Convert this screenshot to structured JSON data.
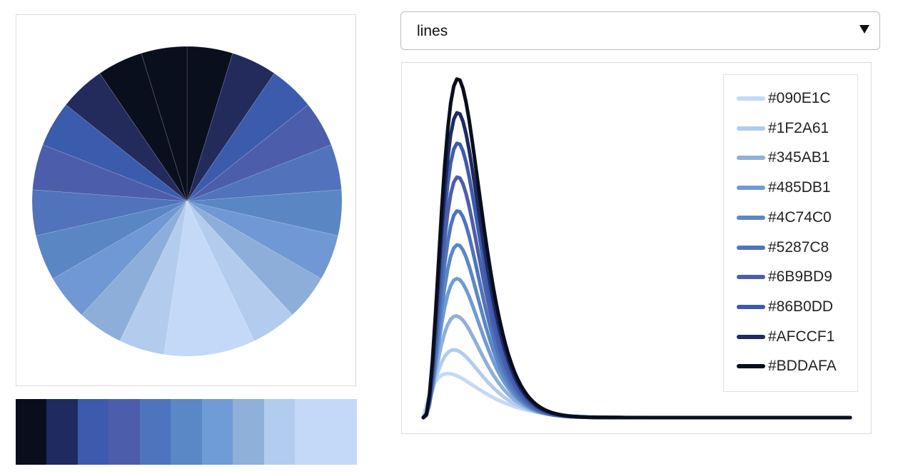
{
  "select": {
    "value": "lines"
  },
  "swatches": [
    "#090E1C",
    "#1F2A61",
    "#3D5BAD",
    "#4C5EAB",
    "#4E74BD",
    "#5A87C5",
    "#6F9BD6",
    "#8EB0D9",
    "#B1CCEE",
    "#C3D9F7"
  ],
  "chart_data": [
    {
      "type": "pie",
      "values": [
        1,
        1,
        1,
        1,
        1,
        1,
        1,
        1,
        1,
        2,
        1,
        1,
        1,
        1,
        1,
        1,
        1,
        1,
        1,
        1
      ],
      "colors": [
        "#0A0F1E",
        "#222B5C",
        "#3B5BAD",
        "#4C5EAB",
        "#5173BB",
        "#5B86C4",
        "#6F98D4",
        "#8CAED8",
        "#B3CCEE",
        "#C3D9F7",
        "#B3CCEE",
        "#8CAED8",
        "#6F98D4",
        "#5B86C4",
        "#5173BB",
        "#4C5EAB",
        "#3B5BAD",
        "#222B5C",
        "#0A0F1E",
        "#0A0F1E"
      ]
    },
    {
      "type": "line",
      "x_range": [
        0,
        10
      ],
      "series": [
        {
          "name": "#090E1C",
          "color": "#C3D9F7",
          "shape": 2.0,
          "peak": 0.13
        },
        {
          "name": "#1F2A61",
          "color": "#B1CCEE",
          "shape": 2.8,
          "peak": 0.2
        },
        {
          "name": "#345AB1",
          "color": "#8EB0D9",
          "shape": 3.3,
          "peak": 0.3
        },
        {
          "name": "#485DB1",
          "color": "#6F9BD6",
          "shape": 3.6,
          "peak": 0.41
        },
        {
          "name": "#4C74C0",
          "color": "#5A87C5",
          "shape": 3.9,
          "peak": 0.51
        },
        {
          "name": "#5287C8",
          "color": "#4E74BD",
          "shape": 4.0,
          "peak": 0.61
        },
        {
          "name": "#6B9BD9",
          "color": "#4C5EAB",
          "shape": 4.0,
          "peak": 0.71
        },
        {
          "name": "#86B0DD",
          "color": "#3D5BAD",
          "shape": 4.0,
          "peak": 0.81
        },
        {
          "name": "#AFCCF1",
          "color": "#1F2A61",
          "shape": 4.0,
          "peak": 0.9
        },
        {
          "name": "#BDDAFA",
          "color": "#090E1C",
          "shape": 4.0,
          "peak": 1.0
        }
      ]
    }
  ]
}
